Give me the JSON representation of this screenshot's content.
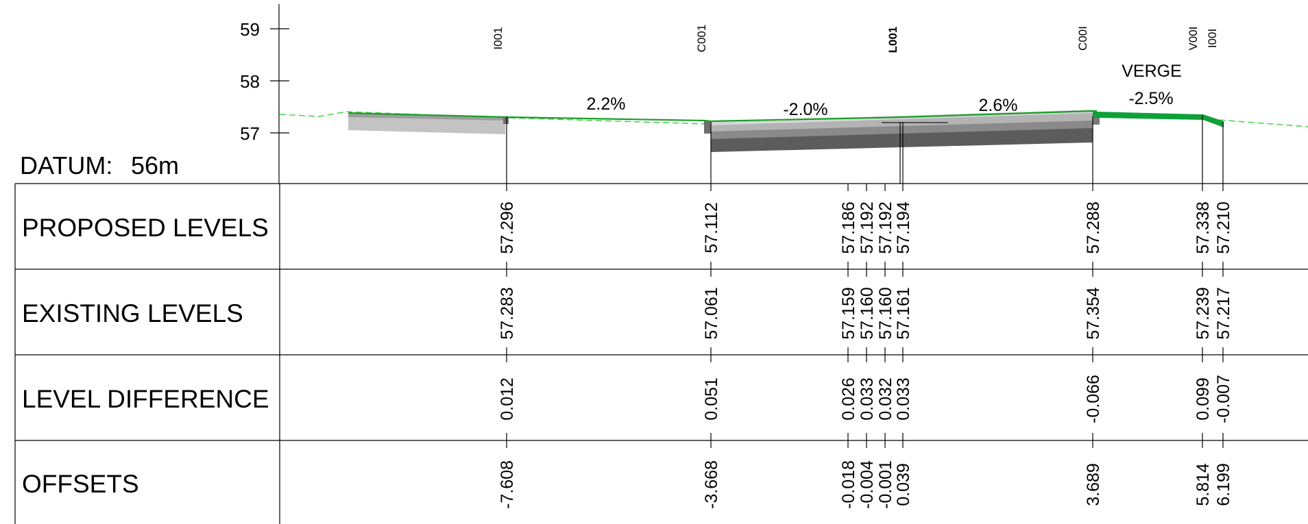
{
  "datum": {
    "label": "DATUM:",
    "value": "56m"
  },
  "y_axis": {
    "ticks": [
      "59",
      "58",
      "57"
    ]
  },
  "slopes": [
    {
      "id": "slope-1",
      "text": "2.2%"
    },
    {
      "id": "slope-2",
      "text": "-2.0%"
    },
    {
      "id": "slope-3",
      "text": "2.6%"
    },
    {
      "id": "slope-4",
      "text": "-2.5%"
    }
  ],
  "region_label": "VERGE",
  "string_codes": [
    {
      "text": "I001"
    },
    {
      "text": "C001"
    },
    {
      "text": "L001"
    },
    {
      "text": "C00I"
    },
    {
      "text": "V00I"
    },
    {
      "text": "I00I"
    }
  ],
  "rows": [
    {
      "label": "PROPOSED LEVELS",
      "values": [
        "57.296",
        "57.112",
        "57.186",
        "57.192",
        "57.192",
        "57.194",
        "57.288",
        "57.338",
        "57.210"
      ]
    },
    {
      "label": "EXISTING LEVELS",
      "values": [
        "57.283",
        "57.061",
        "57.159",
        "57.160",
        "57.160",
        "57.161",
        "57.354",
        "57.239",
        "57.217"
      ]
    },
    {
      "label": "LEVEL DIFFERENCE",
      "values": [
        "0.012",
        "0.051",
        "0.026",
        "0.033",
        "0.032",
        "0.033",
        "-0.066",
        "0.099",
        "-0.007"
      ]
    },
    {
      "label": "OFFSETS",
      "values": [
        "-7.608",
        "-3.668",
        "-0.018",
        "-0.004",
        "-0.001",
        "0.039",
        "3.689",
        "5.814",
        "6.199"
      ]
    }
  ]
}
